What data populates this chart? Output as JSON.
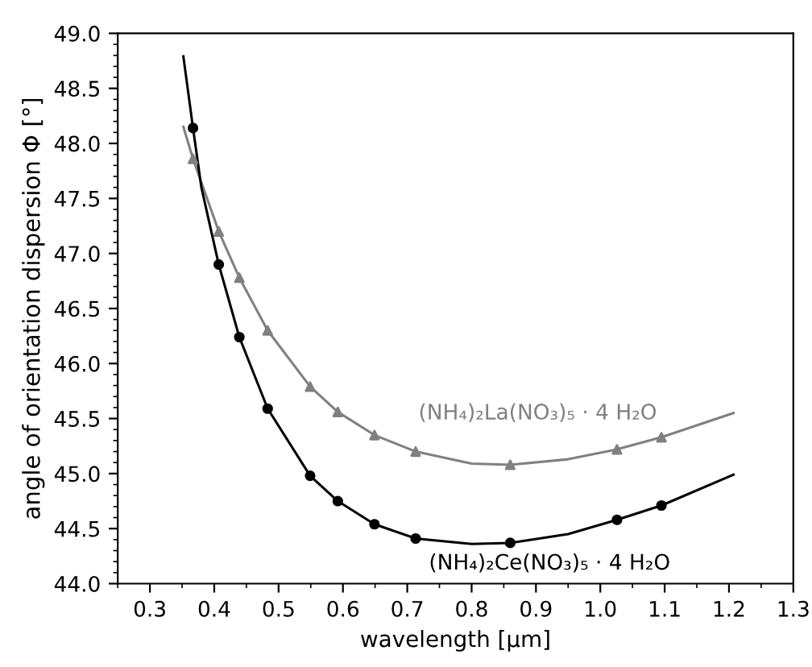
{
  "chart_data": {
    "type": "scatter",
    "xlabel": "wavelength [µm]",
    "ylabel": "angle of orientation dispersion Φ [°]",
    "xlim": [
      0.25,
      1.3
    ],
    "xticks": [
      {
        "value": 0.3,
        "label": "0.3"
      },
      {
        "value": 0.4,
        "label": "0.4"
      },
      {
        "value": 0.5,
        "label": "0.5"
      },
      {
        "value": 0.6,
        "label": "0.6"
      },
      {
        "value": 0.7,
        "label": "0.7"
      },
      {
        "value": 0.8,
        "label": "0.8"
      },
      {
        "value": 0.9,
        "label": "0.9"
      },
      {
        "value": 1.0,
        "label": "1.0"
      },
      {
        "value": 1.1,
        "label": "1.1"
      },
      {
        "value": 1.2,
        "label": "1.2"
      },
      {
        "value": 1.3,
        "label": "1.3"
      }
    ],
    "ylim": [
      44.0,
      49.0
    ],
    "yticks": [
      {
        "value": 44.0,
        "label": "44.0"
      },
      {
        "value": 44.5,
        "label": "44.5"
      },
      {
        "value": 45.0,
        "label": "45.0"
      },
      {
        "value": 45.5,
        "label": "45.5"
      },
      {
        "value": 46.0,
        "label": "46.0"
      },
      {
        "value": 46.5,
        "label": "46.5"
      },
      {
        "value": 47.0,
        "label": "47.0"
      },
      {
        "value": 47.5,
        "label": "47.5"
      },
      {
        "value": 48.0,
        "label": "48.0"
      },
      {
        "value": 48.5,
        "label": "48.5"
      },
      {
        "value": 49.0,
        "label": "49.0"
      }
    ],
    "grid": false,
    "legend": false,
    "series": [
      {
        "name": "(NH₄)₂La(NO₃)₅ · 4 H₂O",
        "marker": "triangle",
        "color": "#808080",
        "x": [
          0.367,
          0.407,
          0.439,
          0.483,
          0.549,
          0.592,
          0.649,
          0.713,
          0.86,
          1.026,
          1.095
        ],
        "values": [
          47.86,
          47.2,
          46.78,
          46.3,
          45.79,
          45.56,
          45.35,
          45.2,
          45.08,
          45.22,
          45.33
        ]
      },
      {
        "name": "(NH₄)₂Ce(NO₃)₅ · 4 H₂O",
        "marker": "circle",
        "color": "#000000",
        "x": [
          0.367,
          0.407,
          0.439,
          0.483,
          0.549,
          0.592,
          0.649,
          0.713,
          0.86,
          1.026,
          1.095
        ],
        "values": [
          48.14,
          46.9,
          46.24,
          45.59,
          44.98,
          44.75,
          44.54,
          44.41,
          44.37,
          44.58,
          44.71
        ]
      },
      {
        "type": "line",
        "color": "#808080",
        "x": [
          0.352,
          0.367,
          0.407,
          0.439,
          0.483,
          0.549,
          0.592,
          0.649,
          0.713,
          0.8,
          0.86,
          0.95,
          1.026,
          1.095,
          1.207
        ],
        "values": [
          48.15,
          47.86,
          47.2,
          46.78,
          46.3,
          45.79,
          45.56,
          45.35,
          45.2,
          45.09,
          45.08,
          45.13,
          45.22,
          45.33,
          45.55
        ]
      },
      {
        "type": "line",
        "color": "#000000",
        "x": [
          0.352,
          0.367,
          0.38,
          0.407,
          0.439,
          0.483,
          0.549,
          0.592,
          0.649,
          0.713,
          0.8,
          0.86,
          0.95,
          1.026,
          1.095,
          1.207
        ],
        "values": [
          48.79,
          48.14,
          47.6,
          46.9,
          46.24,
          45.59,
          44.98,
          44.75,
          44.54,
          44.41,
          44.36,
          44.37,
          44.45,
          44.58,
          44.71,
          44.99
        ]
      }
    ]
  }
}
